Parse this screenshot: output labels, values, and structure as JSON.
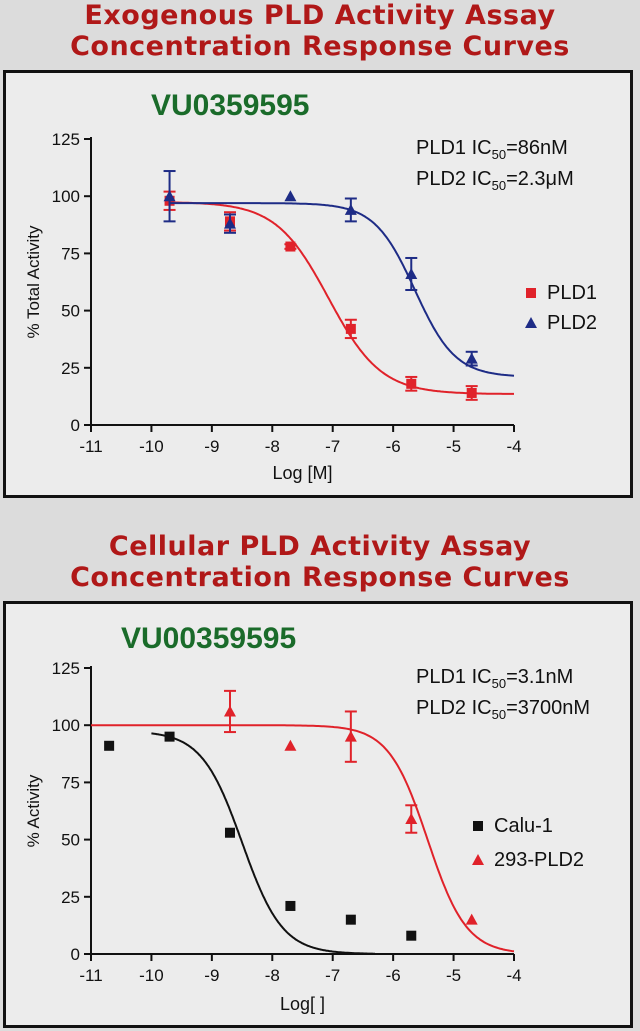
{
  "top_section": {
    "title_line1": "Exogenous PLD Activity Assay",
    "title_line2": "Concentration Response Curves"
  },
  "bottom_section": {
    "title_line1": "Cellular PLD Activity Assay",
    "title_line2": "Concentration Response Curves"
  },
  "colors": {
    "title_red": "#b01818",
    "compound_green": "#1a6b2a"
  },
  "chart_data": [
    {
      "type": "scatter",
      "compound_label": "VU0359595",
      "xlabel": "Log [M]",
      "ylabel": "% Total Activity",
      "xlim": [
        -11,
        -4
      ],
      "ylim": [
        0,
        125
      ],
      "x_ticks": [
        -11,
        -10,
        -9,
        -8,
        -7,
        -6,
        -5,
        -4
      ],
      "y_ticks": [
        0,
        25,
        50,
        75,
        100,
        125
      ],
      "legend_position": "right",
      "annotations": [
        {
          "prefix": "PLD1 IC",
          "sub": "50",
          "suffix": "=86nM"
        },
        {
          "prefix": "PLD2 IC",
          "sub": "50",
          "suffix": "=2.3μM"
        }
      ],
      "series": [
        {
          "name": "PLD1",
          "marker": "square",
          "color": "#e0222a",
          "x": [
            -9.7,
            -8.7,
            -7.7,
            -6.7,
            -5.7,
            -4.7
          ],
          "y": [
            98,
            89,
            78,
            42,
            18,
            14
          ],
          "err": [
            4,
            4,
            1,
            4,
            3,
            3
          ],
          "fit": {
            "top": 97.5,
            "bottom": 13.5,
            "log_ic50": -7.07,
            "hill": 1.0
          }
        },
        {
          "name": "PLD2",
          "marker": "triangle",
          "color": "#1e2c86",
          "x": [
            -9.7,
            -8.7,
            -7.7,
            -6.7,
            -5.7,
            -4.7
          ],
          "y": [
            100,
            88,
            100,
            94,
            66,
            29
          ],
          "err": [
            11,
            4,
            0,
            5,
            7,
            3
          ],
          "fit": {
            "top": 97,
            "bottom": 21,
            "log_ic50": -5.64,
            "hill": 1.3
          }
        }
      ]
    },
    {
      "type": "scatter",
      "compound_label": "VU00359595",
      "xlabel": "Log[ ]",
      "ylabel": "% Activity",
      "xlim": [
        -11,
        -4
      ],
      "ylim": [
        0,
        125
      ],
      "x_ticks": [
        -11,
        -10,
        -9,
        -8,
        -7,
        -6,
        -5,
        -4
      ],
      "y_ticks": [
        0,
        25,
        50,
        75,
        100,
        125
      ],
      "legend_position": "right",
      "annotations": [
        {
          "prefix": "PLD1 IC",
          "sub": "50",
          "suffix": "=3.1nM"
        },
        {
          "prefix": "PLD2 IC",
          "sub": "50",
          "suffix": "=3700nM"
        }
      ],
      "series": [
        {
          "name": "Calu-1",
          "marker": "square",
          "color": "#111111",
          "x": [
            -10.7,
            -9.7,
            -8.7,
            -7.7,
            -6.7,
            -5.7
          ],
          "y": [
            91,
            95,
            53,
            21,
            15,
            8
          ],
          "err": [
            0,
            0,
            0,
            0,
            0,
            0
          ],
          "fit": {
            "top": 97.5,
            "bottom": 0,
            "log_ic50": -8.5,
            "hill": 1.3
          },
          "fit_xmax": -6.3
        },
        {
          "name": "293-PLD2",
          "marker": "triangle",
          "color": "#e0222a",
          "x": [
            -8.7,
            -7.7,
            -6.7,
            -5.7,
            -4.7
          ],
          "y": [
            106,
            91,
            95,
            59,
            15
          ],
          "err": [
            9,
            0,
            11,
            6,
            0
          ],
          "fit": {
            "top": 100,
            "bottom": 0,
            "log_ic50": -5.43,
            "hill": 1.35
          }
        }
      ]
    }
  ]
}
